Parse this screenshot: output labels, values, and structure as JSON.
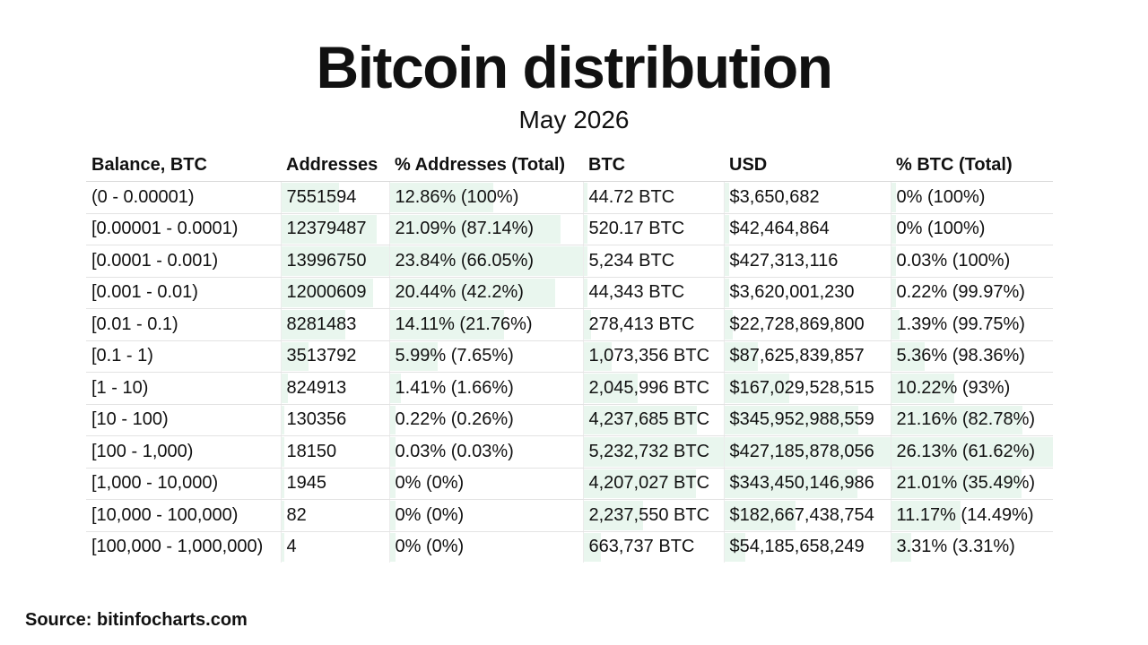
{
  "title": "Bitcoin distribution",
  "subtitle": "May 2026",
  "source": "Source: bitinfocharts.com",
  "bar_color": "#e9f6ee",
  "table": {
    "headers": [
      "Balance, BTC",
      "Addresses",
      "% Addresses (Total)",
      "BTC",
      "USD",
      "% BTC (Total)"
    ],
    "rows": [
      {
        "balance": "(0 - 0.00001)",
        "addresses": "7551594",
        "pct_addresses": "12.86% (100%)",
        "btc": "44.72 BTC",
        "usd": "$3,650,682",
        "pct_btc": "0% (100%)"
      },
      {
        "balance": "[0.00001 - 0.0001)",
        "addresses": "12379487",
        "pct_addresses": "21.09% (87.14%)",
        "btc": "520.17 BTC",
        "usd": "$42,464,864",
        "pct_btc": "0% (100%)"
      },
      {
        "balance": "[0.0001 - 0.001)",
        "addresses": "13996750",
        "pct_addresses": "23.84% (66.05%)",
        "btc": "5,234 BTC",
        "usd": "$427,313,116",
        "pct_btc": "0.03% (100%)"
      },
      {
        "balance": "[0.001 - 0.01)",
        "addresses": "12000609",
        "pct_addresses": "20.44% (42.2%)",
        "btc": "44,343 BTC",
        "usd": "$3,620,001,230",
        "pct_btc": "0.22% (99.97%)"
      },
      {
        "balance": "[0.01 - 0.1)",
        "addresses": "8281483",
        "pct_addresses": "14.11% (21.76%)",
        "btc": "278,413 BTC",
        "usd": "$22,728,869,800",
        "pct_btc": "1.39% (99.75%)"
      },
      {
        "balance": "[0.1 - 1)",
        "addresses": "3513792",
        "pct_addresses": "5.99% (7.65%)",
        "btc": "1,073,356 BTC",
        "usd": "$87,625,839,857",
        "pct_btc": "5.36% (98.36%)"
      },
      {
        "balance": "[1 - 10)",
        "addresses": "824913",
        "pct_addresses": "1.41% (1.66%)",
        "btc": "2,045,996 BTC",
        "usd": "$167,029,528,515",
        "pct_btc": "10.22% (93%)"
      },
      {
        "balance": "[10 - 100)",
        "addresses": "130356",
        "pct_addresses": "0.22% (0.26%)",
        "btc": "4,237,685 BTC",
        "usd": "$345,952,988,559",
        "pct_btc": "21.16% (82.78%)"
      },
      {
        "balance": "[100 - 1,000)",
        "addresses": "18150",
        "pct_addresses": "0.03% (0.03%)",
        "btc": "5,232,732 BTC",
        "usd": "$427,185,878,056",
        "pct_btc": "26.13% (61.62%)"
      },
      {
        "balance": "[1,000 - 10,000)",
        "addresses": "1945",
        "pct_addresses": "0% (0%)",
        "btc": "4,207,027 BTC",
        "usd": "$343,450,146,986",
        "pct_btc": "21.01% (35.49%)"
      },
      {
        "balance": "[10,000 - 100,000)",
        "addresses": "82",
        "pct_addresses": "0% (0%)",
        "btc": "2,237,550 BTC",
        "usd": "$182,667,438,754",
        "pct_btc": "11.17% (14.49%)"
      },
      {
        "balance": "[100,000 - 1,000,000)",
        "addresses": "4",
        "pct_addresses": "0% (0%)",
        "btc": "663,737 BTC",
        "usd": "$54,185,658,249",
        "pct_btc": "3.31% (3.31%)"
      }
    ]
  }
}
